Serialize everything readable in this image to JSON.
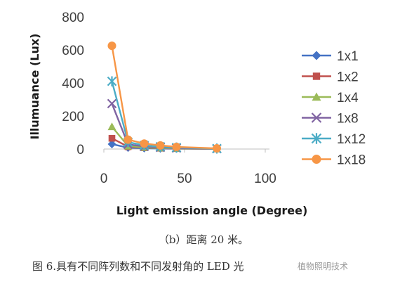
{
  "chart_data": {
    "type": "line",
    "xlabel": "Light emission angle (Degree)",
    "ylabel": "Illumuance (Lux)",
    "xlim": [
      0,
      100
    ],
    "ylim": [
      0,
      800
    ],
    "xticks": [
      0,
      50,
      100
    ],
    "yticks": [
      0,
      200,
      400,
      600,
      800
    ],
    "x": [
      5,
      15,
      25,
      35,
      45,
      70
    ],
    "legend_position": "right",
    "series": [
      {
        "name": "1x1",
        "color": "#4472C4",
        "marker": "diamond",
        "values": [
          30,
          8,
          5,
          3,
          2,
          1
        ]
      },
      {
        "name": "1x2",
        "color": "#C0504D",
        "marker": "square",
        "values": [
          65,
          14,
          8,
          5,
          3,
          1
        ]
      },
      {
        "name": "1x4",
        "color": "#9BBB59",
        "marker": "triangle",
        "values": [
          135,
          18,
          10,
          6,
          4,
          1
        ]
      },
      {
        "name": "1x8",
        "color": "#8064A2",
        "marker": "x",
        "values": [
          275,
          28,
          16,
          10,
          6,
          2
        ]
      },
      {
        "name": "1x12",
        "color": "#4BACC6",
        "marker": "star",
        "values": [
          410,
          42,
          22,
          14,
          9,
          3
        ]
      },
      {
        "name": "1x18",
        "color": "#F79646",
        "marker": "circle",
        "values": [
          625,
          57,
          33,
          22,
          13,
          4
        ]
      }
    ]
  },
  "captions": {
    "sub": "（b）距离 20 米。",
    "main": "图 6.具有不同阵列数和不同发射角的 LED 光",
    "watermark": "植物照明技术"
  }
}
